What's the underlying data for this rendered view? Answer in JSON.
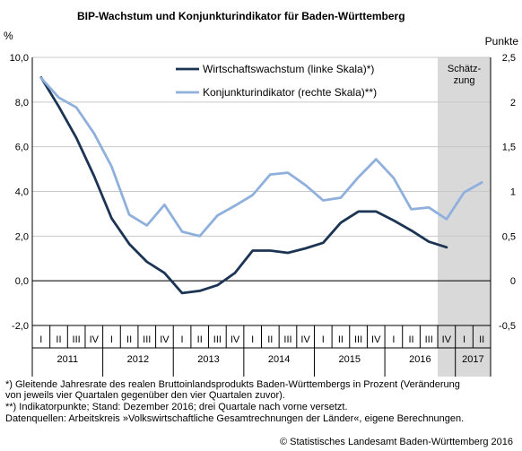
{
  "title": "BIP-Wachstum und Konjunkturindikator für Baden-Württemberg",
  "left_unit": "%",
  "right_unit": "Punkte",
  "estimate_label": "Schätz-\nzung",
  "footnotes": [
    "*) Gleitende Jahresrate des realen Bruttoinlandsprodukts Baden-Württembergs in Prozent (Veränderung",
    "von jeweils vier Quartalen gegenüber den vier Quartalen zuvor).",
    "**) Indikatorpunkte; Stand: Dezember 2016; drei Quartale nach vorne versetzt.",
    "Datenquellen: Arbeitskreis »Volkswirtschaftliche Gesamtrechnungen der Länder«, eigene Berechnungen."
  ],
  "copyright": "© Statistisches Landesamt Baden-Württemberg 2016",
  "colors": {
    "dark": "#1c3454",
    "light": "#8fb0dc",
    "shade": "#d9d9d9",
    "grid": "#c8c8c8"
  },
  "chart_data": {
    "type": "line",
    "title": "BIP-Wachstum und Konjunkturindikator für Baden-Württemberg",
    "x_quarters": [
      "I",
      "II",
      "III",
      "IV",
      "I",
      "II",
      "III",
      "IV",
      "I",
      "II",
      "III",
      "IV",
      "I",
      "II",
      "III",
      "IV",
      "I",
      "II",
      "III",
      "IV",
      "I",
      "II",
      "III",
      "IV",
      "I",
      "II"
    ],
    "years": [
      {
        "label": "2011",
        "quarters": 4
      },
      {
        "label": "2012",
        "quarters": 4
      },
      {
        "label": "2013",
        "quarters": 4
      },
      {
        "label": "2014",
        "quarters": 4
      },
      {
        "label": "2015",
        "quarters": 4
      },
      {
        "label": "2016",
        "quarters": 4
      },
      {
        "label": "2017",
        "quarters": 2
      }
    ],
    "ylim_left": [
      -2,
      10
    ],
    "yticks_left": [
      "-2,0",
      "0,0",
      "2,0",
      "4,0",
      "6,0",
      "8,0",
      "10,0"
    ],
    "ylim_right": [
      -0.5,
      2.5
    ],
    "yticks_right": [
      "-0,5",
      "0",
      "0,5",
      "1",
      "1,5",
      "2",
      "2,5"
    ],
    "estimate_from_index": 23,
    "grid": true,
    "legend_position": "top-center",
    "series": [
      {
        "name": "Wirtschaftswachstum (linke Skala)*)",
        "axis": "left",
        "values": [
          9.1,
          7.8,
          6.4,
          4.7,
          2.8,
          1.65,
          0.85,
          0.35,
          -0.55,
          -0.45,
          -0.2,
          0.35,
          1.35,
          1.35,
          1.25,
          1.45,
          1.7,
          2.6,
          3.1,
          3.1,
          2.7,
          2.25,
          1.75,
          1.5,
          null,
          null
        ]
      },
      {
        "name": "Konjunkturindikator (rechte Skala)**)",
        "axis": "right",
        "values": [
          2.27,
          2.05,
          1.94,
          1.65,
          1.28,
          0.74,
          0.62,
          0.85,
          0.55,
          0.5,
          0.73,
          0.84,
          0.96,
          1.19,
          1.21,
          1.07,
          0.9,
          0.93,
          1.16,
          1.36,
          1.15,
          0.8,
          0.82,
          0.69,
          0.99,
          1.1
        ]
      }
    ]
  }
}
